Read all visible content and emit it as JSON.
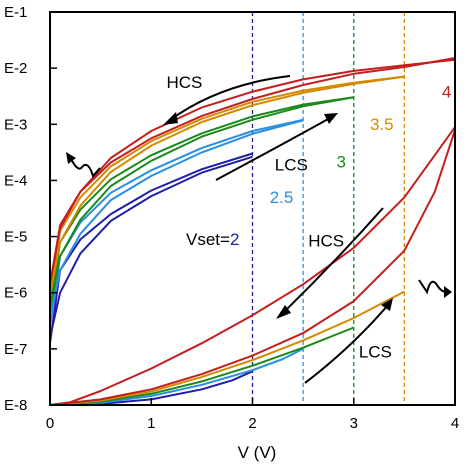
{
  "chart_data": {
    "type": "line",
    "xlabel": "V (V)",
    "ylabel": "",
    "xlim": [
      0,
      4
    ],
    "ylim_log10": [
      -8,
      -1
    ],
    "y_scale": "log",
    "grid": false,
    "x_ticks": [
      0,
      1,
      2,
      3,
      4
    ],
    "x_tick_labels": [
      "0",
      "1",
      "2",
      "3",
      "4"
    ],
    "y_ticks": [
      -1,
      -2,
      -3,
      -4,
      -5,
      -6,
      -7,
      -8
    ],
    "y_tick_labels": [
      "E-1",
      "E-2",
      "E-3",
      "E-4",
      "E-5",
      "E-6",
      "E-7",
      "E-8"
    ],
    "vset_lines": [
      {
        "x": 2,
        "color": "#1f1fa8"
      },
      {
        "x": 2.5,
        "color": "#2a8fe0"
      },
      {
        "x": 3,
        "color": "#1a8a1a"
      },
      {
        "x": 3.5,
        "color": "#d48a00"
      }
    ],
    "series": [
      {
        "vset": 2,
        "color": "#1f1fa8",
        "lcs_pos": [
          [
            0,
            -8
          ],
          [
            0.5,
            -7.98
          ],
          [
            1,
            -7.9
          ],
          [
            1.5,
            -7.72
          ],
          [
            1.8,
            -7.56
          ],
          [
            2,
            -7.4
          ]
        ],
        "hcs_up": [
          [
            0,
            -6.8
          ],
          [
            0.1,
            -6
          ],
          [
            0.3,
            -5.3
          ],
          [
            0.6,
            -4.72
          ],
          [
            1,
            -4.28
          ],
          [
            1.5,
            -3.86
          ],
          [
            2,
            -3.58
          ]
        ],
        "hcs_down": [
          [
            2,
            -3.52
          ],
          [
            1.5,
            -3.8
          ],
          [
            1,
            -4.18
          ],
          [
            0.6,
            -4.6
          ],
          [
            0.3,
            -5.05
          ],
          [
            0.1,
            -5.6
          ],
          [
            0,
            -6.9
          ]
        ]
      },
      {
        "vset": 2.5,
        "color": "#2a8fe0",
        "lcs_pos": [
          [
            0,
            -8
          ],
          [
            0.5,
            -7.96
          ],
          [
            1,
            -7.84
          ],
          [
            1.5,
            -7.64
          ],
          [
            2,
            -7.38
          ],
          [
            2.3,
            -7.18
          ],
          [
            2.5,
            -7
          ]
        ],
        "hcs_up": [
          [
            0,
            -6.5
          ],
          [
            0.1,
            -5.6
          ],
          [
            0.3,
            -4.95
          ],
          [
            0.6,
            -4.35
          ],
          [
            1,
            -3.92
          ],
          [
            1.5,
            -3.5
          ],
          [
            2,
            -3.17
          ],
          [
            2.5,
            -2.93
          ]
        ],
        "hcs_down": [
          [
            2.5,
            -2.92
          ],
          [
            2,
            -3.12
          ],
          [
            1.5,
            -3.42
          ],
          [
            1,
            -3.82
          ],
          [
            0.6,
            -4.22
          ],
          [
            0.3,
            -4.75
          ],
          [
            0.1,
            -5.35
          ],
          [
            0,
            -6.6
          ]
        ]
      },
      {
        "vset": 3,
        "color": "#1a8a1a",
        "lcs_pos": [
          [
            0,
            -8
          ],
          [
            0.5,
            -7.94
          ],
          [
            1,
            -7.8
          ],
          [
            1.5,
            -7.58
          ],
          [
            2,
            -7.3
          ],
          [
            2.5,
            -6.98
          ],
          [
            3,
            -6.62
          ]
        ],
        "hcs_up": [
          [
            0,
            -6.3
          ],
          [
            0.1,
            -5.35
          ],
          [
            0.3,
            -4.7
          ],
          [
            0.6,
            -4.1
          ],
          [
            1,
            -3.65
          ],
          [
            1.5,
            -3.22
          ],
          [
            2,
            -2.92
          ],
          [
            2.5,
            -2.68
          ],
          [
            3,
            -2.52
          ]
        ],
        "hcs_down": [
          [
            3,
            -2.52
          ],
          [
            2.5,
            -2.65
          ],
          [
            2,
            -2.86
          ],
          [
            1.5,
            -3.16
          ],
          [
            1,
            -3.55
          ],
          [
            0.6,
            -3.98
          ],
          [
            0.3,
            -4.52
          ],
          [
            0.1,
            -5.1
          ],
          [
            0,
            -6.3
          ]
        ]
      },
      {
        "vset": 3.5,
        "color": "#d48a00",
        "lcs_pos": [
          [
            0,
            -8
          ],
          [
            0.5,
            -7.92
          ],
          [
            1,
            -7.76
          ],
          [
            1.5,
            -7.5
          ],
          [
            2,
            -7.2
          ],
          [
            2.5,
            -6.85
          ],
          [
            3,
            -6.45
          ],
          [
            3.5,
            -5.98
          ]
        ],
        "hcs_up": [
          [
            0,
            -6.05
          ],
          [
            0.1,
            -5.1
          ],
          [
            0.3,
            -4.45
          ],
          [
            0.6,
            -3.85
          ],
          [
            1,
            -3.38
          ],
          [
            1.5,
            -2.96
          ],
          [
            2,
            -2.66
          ],
          [
            2.5,
            -2.44
          ],
          [
            3,
            -2.28
          ],
          [
            3.5,
            -2.15
          ]
        ],
        "hcs_down": [
          [
            3.5,
            -2.15
          ],
          [
            3,
            -2.26
          ],
          [
            2.5,
            -2.4
          ],
          [
            2,
            -2.6
          ],
          [
            1.5,
            -2.9
          ],
          [
            1,
            -3.3
          ],
          [
            0.6,
            -3.75
          ],
          [
            0.3,
            -4.3
          ],
          [
            0.1,
            -4.9
          ],
          [
            0,
            -6.05
          ]
        ]
      },
      {
        "vset": 4,
        "color": "#c41e1e",
        "lcs_pos": [
          [
            0,
            -8
          ],
          [
            0.5,
            -7.9
          ],
          [
            1,
            -7.72
          ],
          [
            1.5,
            -7.45
          ],
          [
            2,
            -7.12
          ],
          [
            2.5,
            -6.72
          ],
          [
            3,
            -6.15
          ],
          [
            3.5,
            -5.25
          ],
          [
            3.8,
            -4.2
          ],
          [
            4,
            -3.1
          ]
        ],
        "hcs_up": [
          [
            0,
            -5.85
          ],
          [
            0.1,
            -4.85
          ],
          [
            0.3,
            -4.2
          ],
          [
            0.6,
            -3.6
          ],
          [
            1,
            -3.12
          ],
          [
            1.5,
            -2.7
          ],
          [
            2,
            -2.42
          ],
          [
            2.5,
            -2.2
          ],
          [
            3,
            -2.05
          ],
          [
            3.5,
            -1.95
          ],
          [
            4,
            -1.85
          ]
        ],
        "hcs_down": [
          [
            4,
            -1.82
          ],
          [
            3.5,
            -1.98
          ],
          [
            3,
            -2.1
          ],
          [
            2.5,
            -2.3
          ],
          [
            2,
            -2.55
          ],
          [
            1.5,
            -2.85
          ],
          [
            1,
            -3.25
          ],
          [
            0.6,
            -3.68
          ],
          [
            0.3,
            -4.2
          ],
          [
            0.1,
            -4.8
          ],
          [
            0,
            -5.85
          ]
        ],
        "lcs_neg": [
          [
            4,
            -3.05
          ],
          [
            3.8,
            -3.55
          ],
          [
            3.5,
            -4.3
          ],
          [
            3,
            -5.2
          ],
          [
            2.5,
            -5.85
          ],
          [
            2,
            -6.4
          ],
          [
            1.5,
            -6.9
          ],
          [
            1,
            -7.35
          ],
          [
            0.5,
            -7.75
          ],
          [
            0.2,
            -7.95
          ],
          [
            0,
            -8
          ]
        ]
      }
    ],
    "annotations": [
      {
        "text": "HCS",
        "x": 1.15,
        "y": -2.35,
        "color": "#000000"
      },
      {
        "text": "LCS",
        "x": 2.22,
        "y": -3.82,
        "color": "#000000"
      },
      {
        "text": "HCS",
        "x": 2.55,
        "y": -5.18,
        "color": "#000000"
      },
      {
        "text": "LCS",
        "x": 3.05,
        "y": -7.15,
        "color": "#000000"
      },
      {
        "text": "4",
        "x": 3.87,
        "y": -2.52,
        "color": "#c41e1e"
      },
      {
        "text": "3.5",
        "x": 3.16,
        "y": -3.1,
        "color": "#d48a00"
      },
      {
        "text": "3",
        "x": 2.83,
        "y": -3.77,
        "color": "#1a8a1a"
      },
      {
        "text": "2.5",
        "x": 2.17,
        "y": -4.4,
        "color": "#2a8fe0"
      }
    ],
    "vset_label": {
      "prefix": "Vset=",
      "value": "2",
      "value_color": "#1f1fa8"
    }
  }
}
